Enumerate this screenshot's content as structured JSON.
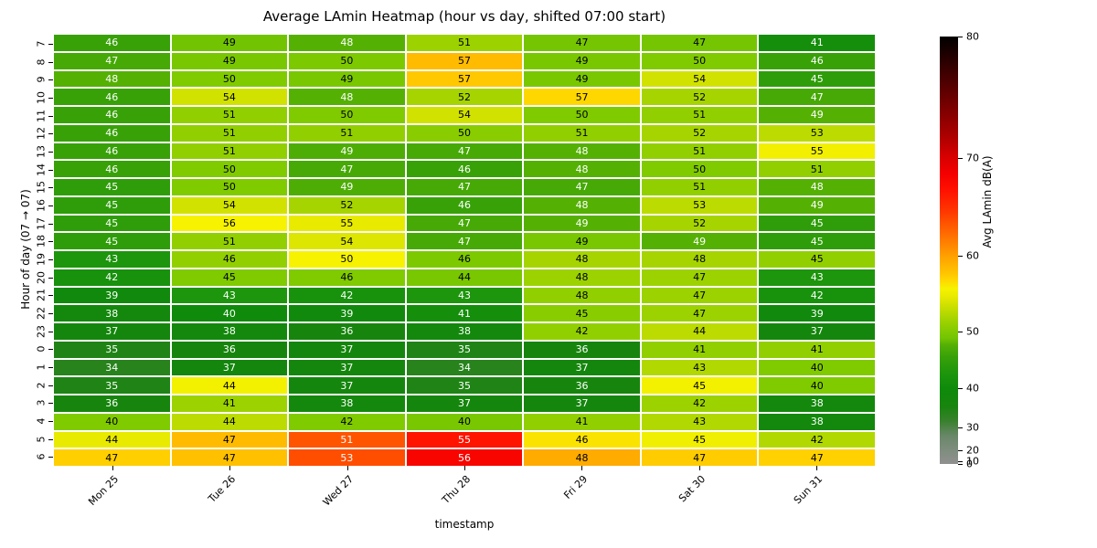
{
  "title": "Average LAmin Heatmap (hour vs day, shifted 07:00 start)",
  "xlabel": "timestamp",
  "ylabel": "Hour of day (07 → 07)",
  "colorbar": {
    "label": "Avg LAmin dB(A)",
    "ticks": [
      0,
      10,
      20,
      30,
      40,
      50,
      60,
      70,
      80
    ],
    "vmin": 0,
    "vmax": 80,
    "norm_gamma": 2.5
  },
  "chart_data": {
    "type": "heatmap",
    "x_labels": [
      "Mon 25",
      "Tue 26",
      "Wed 27",
      "Thu 28",
      "Fri 29",
      "Sat 30",
      "Sun 31"
    ],
    "y_labels": [
      "7",
      "8",
      "9",
      "10",
      "11",
      "12",
      "13",
      "14",
      "15",
      "16",
      "17",
      "18",
      "19",
      "20",
      "21",
      "22",
      "23",
      "0",
      "1",
      "2",
      "3",
      "4",
      "5",
      "6"
    ],
    "values": [
      [
        46,
        49,
        48,
        51,
        47,
        47,
        41
      ],
      [
        47,
        49,
        50,
        57,
        49,
        50,
        46
      ],
      [
        48,
        50,
        49,
        57,
        49,
        54,
        45
      ],
      [
        46,
        54,
        48,
        52,
        57,
        52,
        47
      ],
      [
        46,
        51,
        50,
        54,
        50,
        51,
        49
      ],
      [
        46,
        51,
        51,
        50,
        51,
        52,
        53
      ],
      [
        46,
        51,
        49,
        47,
        48,
        51,
        55
      ],
      [
        46,
        50,
        47,
        46,
        48,
        50,
        51
      ],
      [
        45,
        50,
        49,
        47,
        47,
        51,
        48
      ],
      [
        45,
        54,
        52,
        46,
        48,
        53,
        49
      ],
      [
        45,
        56,
        55,
        47,
        49,
        52,
        45
      ],
      [
        45,
        51,
        54,
        47,
        49,
        49,
        45
      ],
      [
        43,
        46,
        50,
        46,
        48,
        48,
        45
      ],
      [
        42,
        45,
        46,
        44,
        48,
        47,
        43
      ],
      [
        39,
        43,
        42,
        43,
        48,
        47,
        42
      ],
      [
        38,
        40,
        39,
        41,
        45,
        47,
        39
      ],
      [
        37,
        38,
        36,
        38,
        42,
        44,
        37
      ],
      [
        35,
        36,
        37,
        35,
        36,
        41,
        41
      ],
      [
        34,
        37,
        37,
        34,
        37,
        43,
        40
      ],
      [
        35,
        44,
        37,
        35,
        36,
        45,
        40
      ],
      [
        36,
        41,
        38,
        37,
        37,
        42,
        38
      ],
      [
        40,
        44,
        42,
        40,
        41,
        43,
        38
      ],
      [
        44,
        47,
        51,
        55,
        46,
        45,
        42
      ],
      [
        47,
        47,
        53,
        56,
        48,
        47,
        47
      ]
    ],
    "cell_color_values": [
      [
        46,
        49,
        48,
        51.5,
        49.2,
        49.2,
        41
      ],
      [
        47,
        49.5,
        49.8,
        58.5,
        49.5,
        50,
        46
      ],
      [
        48,
        50,
        49.5,
        57.8,
        49.5,
        54,
        45
      ],
      [
        46,
        54,
        48,
        52,
        57.1,
        52,
        47
      ],
      [
        46,
        51,
        50,
        54,
        50,
        51,
        48
      ],
      [
        46,
        51,
        51,
        50.5,
        51,
        52,
        53
      ],
      [
        46,
        51,
        47.5,
        47,
        48,
        51,
        55.7
      ],
      [
        46,
        50,
        47,
        46,
        48,
        50,
        51
      ],
      [
        45,
        50,
        47.5,
        47,
        47,
        51,
        48
      ],
      [
        45,
        54,
        52,
        46,
        48,
        53,
        48
      ],
      [
        45,
        56,
        55,
        47,
        48,
        52,
        45
      ],
      [
        45,
        51,
        54.5,
        47,
        49.5,
        48,
        45
      ],
      [
        43,
        51,
        56,
        49.8,
        52,
        52,
        51
      ],
      [
        42,
        50,
        50,
        49.5,
        51.5,
        51.5,
        43
      ],
      [
        39,
        43,
        42,
        43,
        51,
        51.5,
        42
      ],
      [
        38,
        40,
        39,
        41,
        50.5,
        51.5,
        39
      ],
      [
        37,
        38,
        36,
        38,
        51,
        53,
        37
      ],
      [
        35,
        36,
        37,
        35,
        36,
        51,
        51
      ],
      [
        34,
        37,
        37,
        34,
        37,
        52.5,
        50
      ],
      [
        35,
        55.8,
        37,
        35,
        36,
        55.8,
        50
      ],
      [
        36,
        51.5,
        38,
        37,
        37,
        51.5,
        38
      ],
      [
        50,
        53,
        50,
        49.5,
        51,
        52.5,
        38
      ],
      [
        55,
        58.5,
        63.5,
        66.8,
        56.6,
        55.6,
        52.5
      ],
      [
        57.5,
        58.2,
        63.8,
        68,
        59.4,
        57.6,
        57.4
      ]
    ],
    "colormap_stops": [
      [
        0,
        "#909090"
      ],
      [
        20,
        "#7f8d7f"
      ],
      [
        27,
        "#688768"
      ],
      [
        32,
        "#38812c"
      ],
      [
        36,
        "#17850d"
      ],
      [
        40,
        "#0f8a0b"
      ],
      [
        43,
        "#1d950c"
      ],
      [
        45,
        "#2f9d09"
      ],
      [
        46,
        "#38a108"
      ],
      [
        47,
        "#46a906"
      ],
      [
        48,
        "#55b004"
      ],
      [
        49,
        "#72c402"
      ],
      [
        50,
        "#80ca00"
      ],
      [
        51,
        "#92cf00"
      ],
      [
        52,
        "#a6d400"
      ],
      [
        53,
        "#bcdb00"
      ],
      [
        54,
        "#d2e200"
      ],
      [
        55,
        "#e8ea00"
      ],
      [
        56,
        "#f6f200"
      ],
      [
        57,
        "#ffd900"
      ],
      [
        58,
        "#ffc400"
      ],
      [
        59,
        "#ffb200"
      ],
      [
        60,
        "#ffa000"
      ],
      [
        61.5,
        "#ff8000"
      ],
      [
        63,
        "#ff6000"
      ],
      [
        65,
        "#ff3400"
      ],
      [
        67,
        "#ff1000"
      ],
      [
        68.5,
        "#f40000"
      ],
      [
        70,
        "#d90000"
      ],
      [
        72,
        "#ab0000"
      ],
      [
        75,
        "#6e0000"
      ],
      [
        80,
        "#000000"
      ]
    ],
    "gridline_color": "#ffffff",
    "annotation_text_colors": [
      "#000000",
      "#ffffff"
    ],
    "legend_position": "right"
  }
}
